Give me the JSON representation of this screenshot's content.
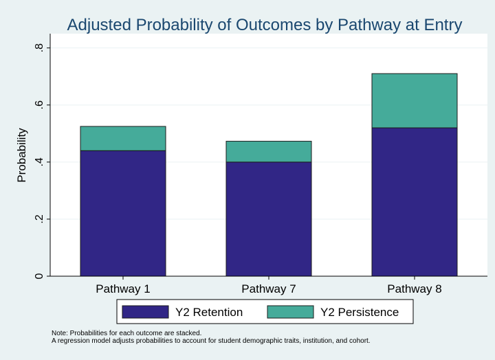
{
  "chart_data": {
    "type": "bar",
    "stacked": true,
    "title": "Adjusted Probability of Outcomes by Pathway at Entry",
    "xlabel": "",
    "ylabel": "Probability",
    "ylim": [
      0,
      0.85
    ],
    "yticks": [
      0,
      0.2,
      0.4,
      0.6,
      0.8
    ],
    "ytick_labels": [
      "0",
      ".2",
      ".4",
      ".6",
      ".8"
    ],
    "categories": [
      "Pathway 1",
      "Pathway 7",
      "Pathway 8"
    ],
    "series": [
      {
        "name": "Y2 Retention",
        "color": "#312686",
        "values": [
          0.44,
          0.4,
          0.52
        ]
      },
      {
        "name": "Y2 Persistence",
        "color": "#45ab9a",
        "values": [
          0.085,
          0.073,
          0.19
        ]
      }
    ],
    "grid": true,
    "legend_position": "bottom"
  },
  "notes": [
    "Note: Probabilities for each outcome are stacked.",
    "A regression model adjusts probabilities to account for student demographic traits, institution, and cohort."
  ],
  "colors": {
    "background": "#eaf2f3",
    "plot_background": "#ffffff",
    "grid": "#eaf2f3"
  }
}
